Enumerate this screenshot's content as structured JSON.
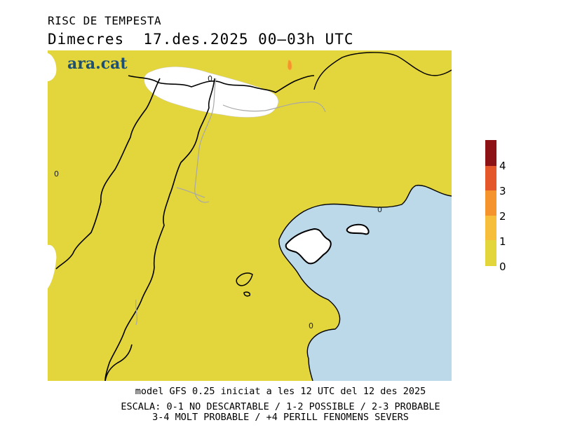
{
  "header": {
    "title": "RISC DE TEMPESTA",
    "subtitle": "Dimecres  17.des.2025 00–03h UTC"
  },
  "map": {
    "logo_text": "ara.cat",
    "contour_labels": [
      "0",
      "0",
      "0",
      "0"
    ],
    "colors": {
      "land": "#e3d53c",
      "sea": "#bcd9ea",
      "no_risk": "#ffffff",
      "border": "#000000",
      "region_border": "#a8a8a8"
    }
  },
  "legend": {
    "labels": [
      "0",
      "1",
      "2",
      "3",
      "4"
    ],
    "colors": [
      "#e3d53c",
      "#f6be3a",
      "#f5932d",
      "#e4572a",
      "#8c1216"
    ]
  },
  "footer": {
    "line1": "model GFS 0.25 iniciat a les 12 UTC del 12 des 2025",
    "line2": "ESCALA: 0-1 NO DESCARTABLE / 1-2 POSSIBLE / 2-3 PROBABLE",
    "line3": "3-4 MOLT PROBABLE / +4 PERILL FENOMENS SEVERS"
  }
}
